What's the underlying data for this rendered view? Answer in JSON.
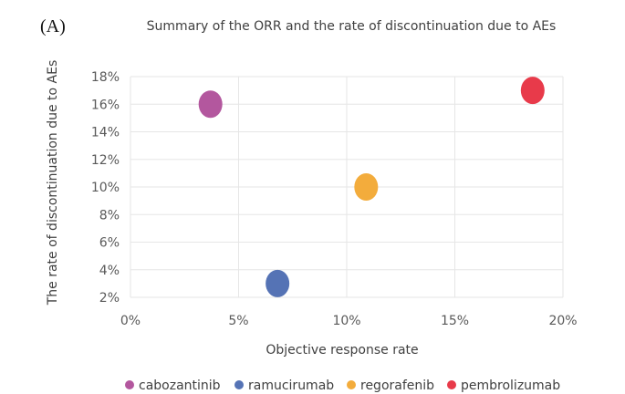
{
  "panel_label": "(A)",
  "chart_data": {
    "type": "scatter",
    "title": "Summary of the ORR and the rate of discontinuation due to AEs",
    "xlabel": "Objective response rate",
    "ylabel": "The rate of discontinuation due to AEs",
    "xlim": [
      0,
      20
    ],
    "ylim": [
      2,
      18
    ],
    "x_ticks": [
      "0%",
      "5%",
      "10%",
      "15%",
      "20%"
    ],
    "y_ticks": [
      "2%",
      "4%",
      "6%",
      "8%",
      "10%",
      "12%",
      "14%",
      "16%",
      "18%"
    ],
    "grid": true,
    "legend_position": "bottom",
    "series": [
      {
        "name": "cabozantinib",
        "color": "#b3579e",
        "x": 3.7,
        "y": 16
      },
      {
        "name": "ramucirumab",
        "color": "#5573b5",
        "x": 6.8,
        "y": 3
      },
      {
        "name": "regorafenib",
        "color": "#f3ac3c",
        "x": 10.9,
        "y": 10
      },
      {
        "name": "pembrolizumab",
        "color": "#e83a4a",
        "x": 18.6,
        "y": 17
      }
    ]
  }
}
